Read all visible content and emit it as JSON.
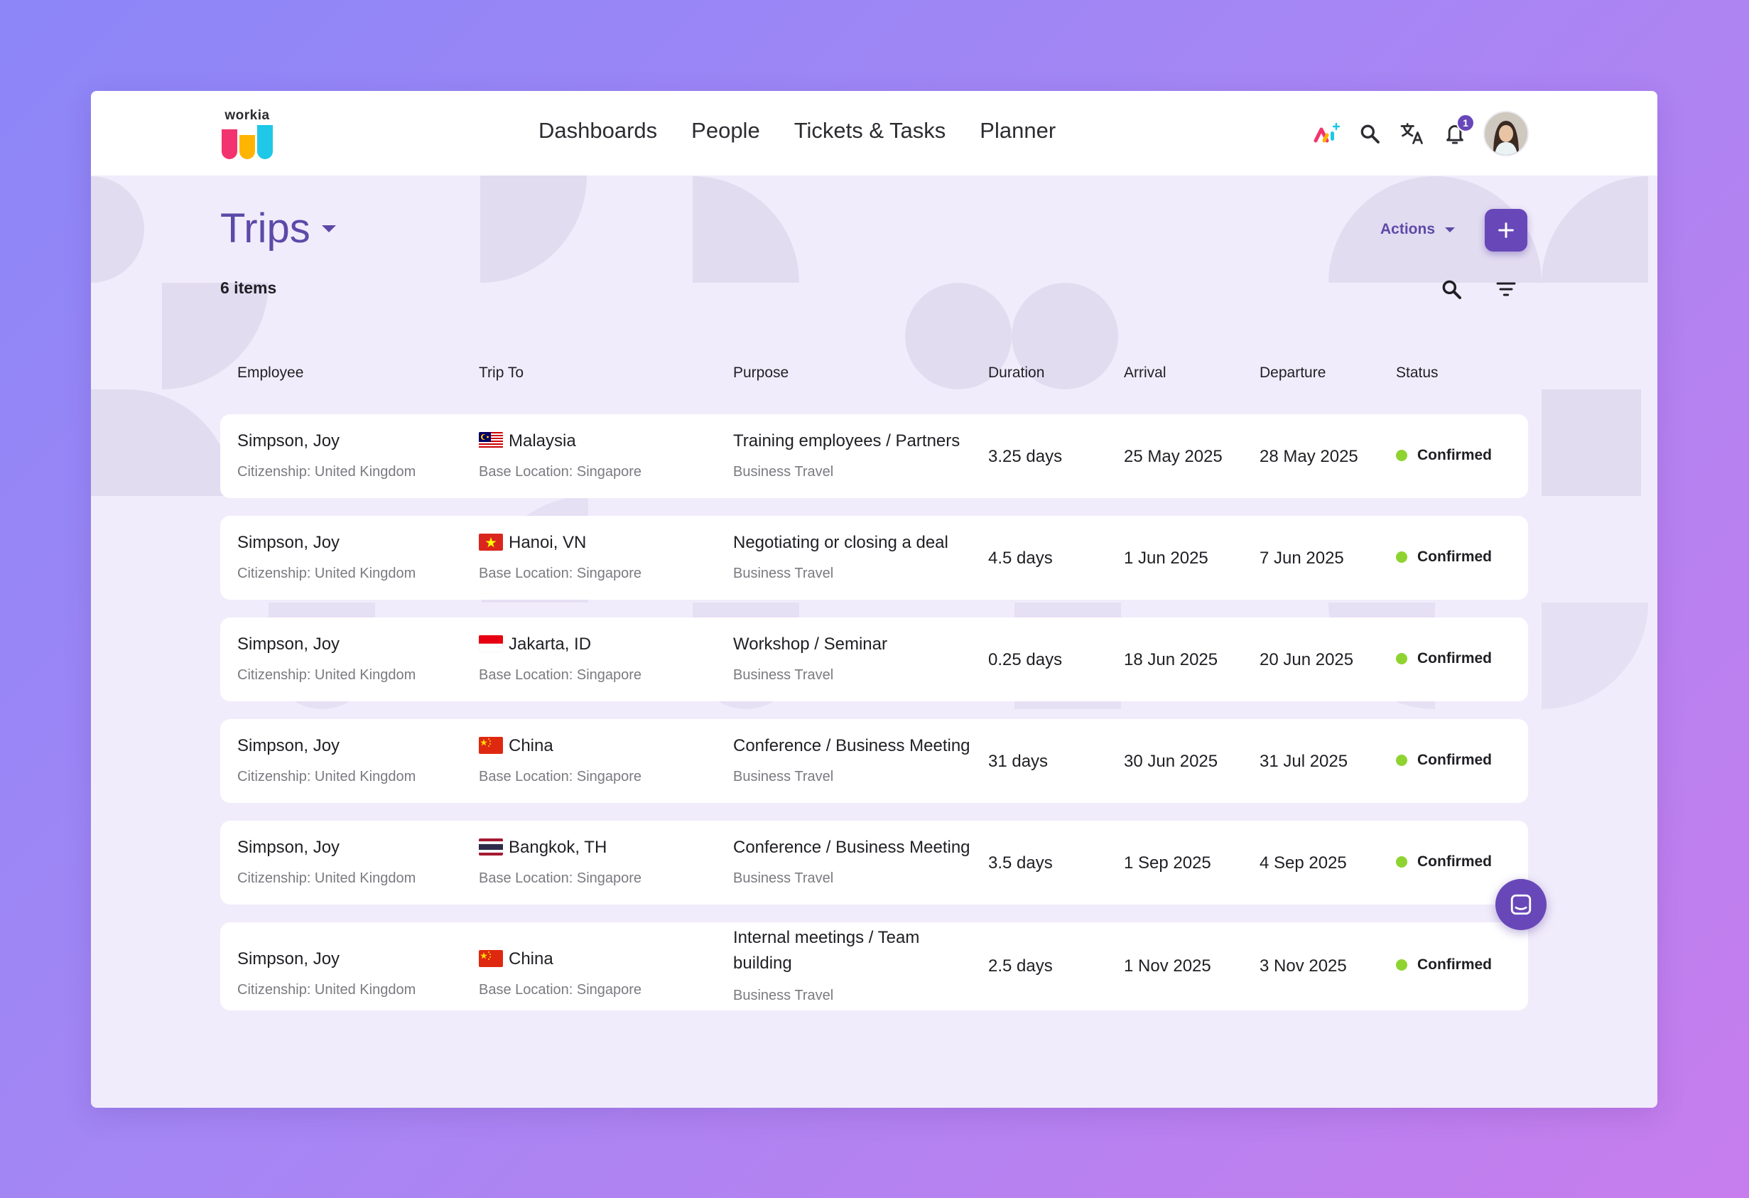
{
  "brand": {
    "name": "workia"
  },
  "nav": {
    "items": [
      "Dashboards",
      "People",
      "Tickets & Tasks",
      "Planner"
    ]
  },
  "header_icons": {
    "ai": "ai-icon",
    "search": "search-icon",
    "translate": "translate-icon",
    "notifications": "bell-icon",
    "notification_count": "1"
  },
  "page": {
    "title": "Trips",
    "items_count": "6 items",
    "actions_label": "Actions",
    "add_icon": "plus-icon"
  },
  "table": {
    "columns": {
      "employee": "Employee",
      "trip_to": "Trip To",
      "purpose": "Purpose",
      "duration": "Duration",
      "arrival": "Arrival",
      "departure": "Departure",
      "status": "Status"
    },
    "rows": [
      {
        "employee": "Simpson, Joy",
        "citizenship": "Citizenship: United Kingdom",
        "flag": "MY",
        "trip_to": "Malaysia",
        "base": "Base Location: Singapore",
        "purpose": "Training employees / Partners",
        "purpose_type": "Business Travel",
        "duration": "3.25 days",
        "arrival": "25 May 2025",
        "departure": "28 May 2025",
        "status": "Confirmed"
      },
      {
        "employee": "Simpson, Joy",
        "citizenship": "Citizenship: United Kingdom",
        "flag": "VN",
        "trip_to": "Hanoi, VN",
        "base": "Base Location: Singapore",
        "purpose": "Negotiating or closing a deal",
        "purpose_type": "Business Travel",
        "duration": "4.5 days",
        "arrival": "1 Jun 2025",
        "departure": "7 Jun 2025",
        "status": "Confirmed"
      },
      {
        "employee": "Simpson, Joy",
        "citizenship": "Citizenship: United Kingdom",
        "flag": "ID",
        "trip_to": "Jakarta, ID",
        "base": "Base Location: Singapore",
        "purpose": "Workshop / Seminar",
        "purpose_type": "Business Travel",
        "duration": "0.25 days",
        "arrival": "18 Jun 2025",
        "departure": "20 Jun 2025",
        "status": "Confirmed"
      },
      {
        "employee": "Simpson, Joy",
        "citizenship": "Citizenship: United Kingdom",
        "flag": "CN",
        "trip_to": "China",
        "base": "Base Location: Singapore",
        "purpose": "Conference / Business Meeting",
        "purpose_type": "Business Travel",
        "duration": "31 days",
        "arrival": "30 Jun 2025",
        "departure": "31 Jul 2025",
        "status": "Confirmed"
      },
      {
        "employee": "Simpson, Joy",
        "citizenship": "Citizenship: United Kingdom",
        "flag": "TH",
        "trip_to": "Bangkok, TH",
        "base": "Base Location: Singapore",
        "purpose": "Conference / Business Meeting",
        "purpose_type": "Business Travel",
        "duration": "3.5 days",
        "arrival": "1 Sep 2025",
        "departure": "4 Sep 2025",
        "status": "Confirmed"
      },
      {
        "employee": "Simpson, Joy",
        "citizenship": "Citizenship: United Kingdom",
        "flag": "CN",
        "trip_to": "China",
        "base": "Base Location: Singapore",
        "purpose": "Internal meetings / Team building",
        "purpose_type": "Business Travel",
        "duration": "2.5 days",
        "arrival": "1 Nov 2025",
        "departure": "3 Nov 2025",
        "status": "Confirmed"
      }
    ]
  },
  "colors": {
    "accent": "#6847b9",
    "title": "#5c4aa8",
    "status_confirmed": "#8fd331",
    "background_panel": "#f1ecfb"
  },
  "chat_icon": "chat-icon"
}
